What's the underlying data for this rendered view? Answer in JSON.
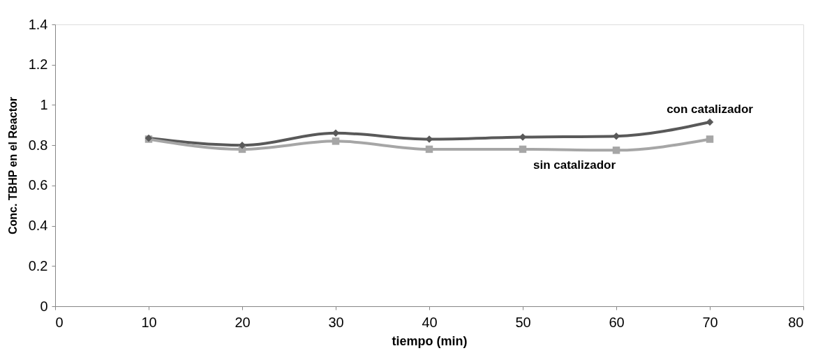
{
  "chart_data": {
    "type": "line",
    "xlabel": "tiempo (min)",
    "ylabel": "Conc. TBHP en el Reactor",
    "x": [
      10,
      20,
      30,
      40,
      50,
      60,
      70
    ],
    "series": [
      {
        "name": "con catalizador",
        "color": "#595959",
        "marker": "diamond",
        "values": [
          0.835,
          0.8,
          0.86,
          0.83,
          0.84,
          0.845,
          0.915
        ]
      },
      {
        "name": "sin catalizador",
        "color": "#a6a6a6",
        "marker": "square",
        "values": [
          0.83,
          0.78,
          0.82,
          0.78,
          0.78,
          0.775,
          0.83
        ]
      }
    ],
    "xlim": [
      0,
      80
    ],
    "xticks": [
      0,
      10,
      20,
      30,
      40,
      50,
      60,
      70,
      80
    ],
    "ylim": [
      0,
      1.4
    ],
    "yticks": [
      0,
      0.2,
      0.4,
      0.6,
      0.8,
      1,
      1.2,
      1.4
    ],
    "grid": false,
    "legend": false,
    "line_style": "solid"
  }
}
